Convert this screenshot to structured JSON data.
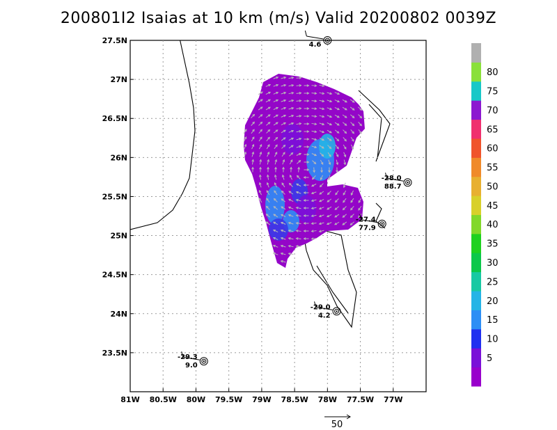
{
  "title": "200801I2 Isaias at 10 km (m/s) Valid 20200802 0039Z",
  "map": {
    "lon_range": [
      -81.0,
      -76.5
    ],
    "lat_range": [
      23.0,
      27.5
    ],
    "lon_ticks": [
      {
        "value": -81.0,
        "label": "81W"
      },
      {
        "value": -80.5,
        "label": "80.5W"
      },
      {
        "value": -80.0,
        "label": "80W"
      },
      {
        "value": -79.5,
        "label": "79.5W"
      },
      {
        "value": -79.0,
        "label": "79W"
      },
      {
        "value": -78.5,
        "label": "78.5W"
      },
      {
        "value": -78.0,
        "label": "78W"
      },
      {
        "value": -77.5,
        "label": "77.5W"
      },
      {
        "value": -77.0,
        "label": "77W"
      }
    ],
    "lat_ticks": [
      {
        "value": 23.5,
        "label": "23.5N"
      },
      {
        "value": 24.0,
        "label": "24N"
      },
      {
        "value": 24.5,
        "label": "24.5N"
      },
      {
        "value": 25.0,
        "label": "25N"
      },
      {
        "value": 25.5,
        "label": "25.5N"
      },
      {
        "value": 26.0,
        "label": "26N"
      },
      {
        "value": 26.5,
        "label": "26.5N"
      },
      {
        "value": 27.0,
        "label": "27N"
      },
      {
        "value": 27.5,
        "label": "27.5N"
      }
    ],
    "grid": true
  },
  "dropsondes": [
    {
      "lon": -78.0,
      "lat": 27.5,
      "temp": "",
      "wind": "4.6"
    },
    {
      "lon": -76.78,
      "lat": 25.68,
      "temp": "-28.0",
      "wind": "88.7"
    },
    {
      "lon": -77.17,
      "lat": 25.15,
      "temp": "-27.4",
      "wind": "77.9"
    },
    {
      "lon": -77.86,
      "lat": 24.03,
      "temp": "-29.0",
      "wind": "4.2"
    },
    {
      "lon": -79.88,
      "lat": 23.39,
      "temp": "-29.3",
      "wind": "9.0"
    }
  ],
  "colorbar": {
    "labels": [
      "5",
      "10",
      "15",
      "20",
      "25",
      "30",
      "35",
      "40",
      "45",
      "50",
      "55",
      "60",
      "65",
      "70",
      "75",
      "80"
    ],
    "colors": [
      "#9900cc",
      "#7a10d8",
      "#2030f0",
      "#2d8ef5",
      "#25b4e6",
      "#18c9a3",
      "#0cc84a",
      "#1fd11f",
      "#82d82a",
      "#d8d02a",
      "#e8b030",
      "#f08a2a",
      "#f0542c",
      "#f0306e",
      "#8c18d0",
      "#18c8c8",
      "#8ae03a",
      "#b0b0b0"
    ]
  },
  "reference_vector": {
    "label": "50"
  }
}
